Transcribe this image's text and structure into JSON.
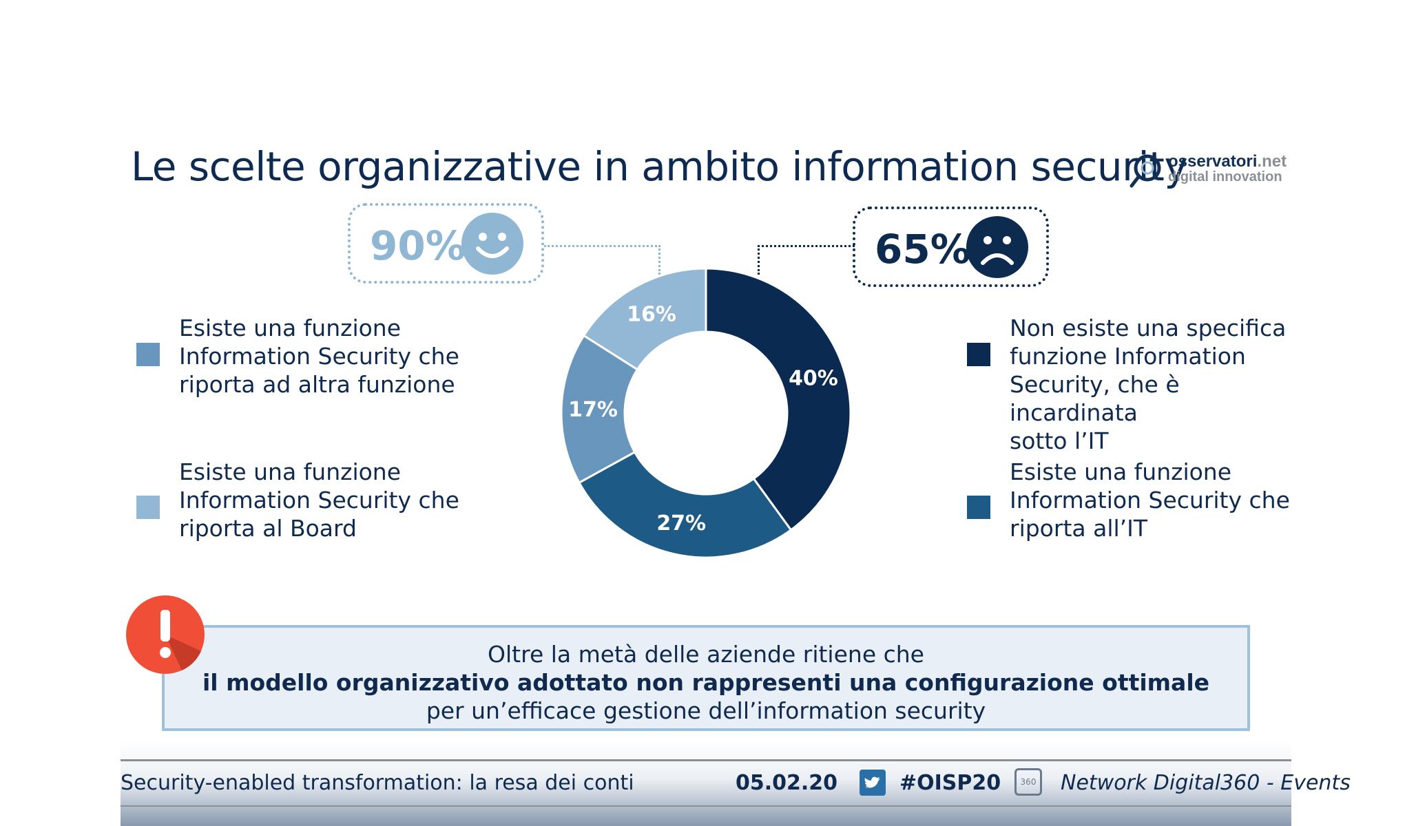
{
  "title": "Le scelte organizzative in ambito information security",
  "logo": {
    "main": "osservatori",
    "main_suffix": ".net",
    "sub": "digital innovation"
  },
  "callouts": {
    "satisfied": {
      "value": "90%",
      "icon": "smiley-face-icon",
      "color": "#8fb6d3"
    },
    "unsatisfied": {
      "value": "65%",
      "icon": "frowning-face-icon",
      "color": "#0d2a4f"
    }
  },
  "legend": {
    "left": [
      {
        "label": "Esiste una funzione\nInformation Security che\nriporta ad altra funzione",
        "color": "#6996bd"
      },
      {
        "label": "Esiste una funzione\nInformation Security che\nriporta al Board",
        "color": "#93b8d6"
      }
    ],
    "right": [
      {
        "label": "Non esiste una specifica\nfunzione Information\nSecurity, che è incardinata\nsotto l’IT",
        "color": "#0b2a52"
      },
      {
        "label": "Esiste una funzione\nInformation Security che\nriporta all’IT",
        "color": "#1e5a86"
      }
    ]
  },
  "chart_data": {
    "type": "pie",
    "variant": "donut",
    "title": "",
    "slices": [
      {
        "label": "Non esiste una specifica funzione Information Security, che è incardinata sotto l’IT",
        "value": 40,
        "display": "40%",
        "color": "#0b2a52"
      },
      {
        "label": "Esiste una funzione Information Security che riporta all’IT",
        "value": 27,
        "display": "27%",
        "color": "#1e5a86"
      },
      {
        "label": "Esiste una funzione Information Security che riporta ad altra funzione",
        "value": 17,
        "display": "17%",
        "color": "#6996bd"
      },
      {
        "label": "Esiste una funzione Information Security che riporta al Board",
        "value": 16,
        "display": "16%",
        "color": "#93b8d6"
      }
    ]
  },
  "message": {
    "line1": "Oltre la metà delle aziende ritiene che",
    "line2": "il modello organizzativo adottato non rappresenti una configurazione ottimale",
    "line3": "per un’efficace gestione dell’information security"
  },
  "footer": {
    "event": "Security-enabled transformation: la resa dei conti",
    "date": "05.02.20",
    "hashtag": "#OISP20",
    "network": "Network Digital360 - Events",
    "network_icon_text": "360"
  }
}
